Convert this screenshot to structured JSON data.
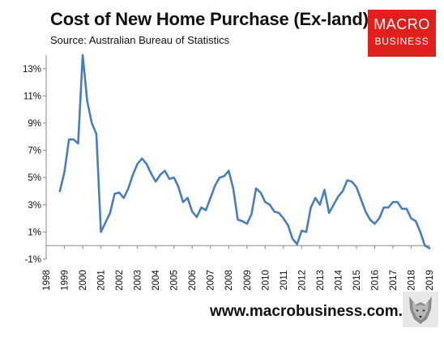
{
  "header": {
    "title": "Cost of New Home Purchase (Ex-land)",
    "subtitle": "Source: Australian Bureau of Statistics"
  },
  "logo": {
    "line1": "MACRO",
    "line2": "BUSINESS"
  },
  "footer": {
    "url": "www.macrobusiness.com.au"
  },
  "colors": {
    "line": "#4a7ebb",
    "logo_bg": "#e0201c",
    "axis": "#888888"
  },
  "chart_data": {
    "type": "line",
    "title": "Cost of New Home Purchase (Ex-land)",
    "subtitle": "Source: Australian Bureau of Statistics",
    "xlabel": "",
    "ylabel": "",
    "xlim": [
      1998,
      2019
    ],
    "ylim": [
      -1,
      14
    ],
    "y_ticks": [
      -1,
      1,
      3,
      5,
      7,
      9,
      11,
      13
    ],
    "y_tick_labels": [
      "-1%",
      "1%",
      "3%",
      "5%",
      "7%",
      "9%",
      "11%",
      "13%"
    ],
    "x_ticks": [
      1998,
      1999,
      2000,
      2001,
      2002,
      2003,
      2004,
      2005,
      2006,
      2007,
      2008,
      2009,
      2010,
      2011,
      2012,
      2013,
      2014,
      2015,
      2016,
      2017,
      2018,
      2019
    ],
    "x_tick_labels": [
      "1998",
      "1999",
      "2000",
      "2001",
      "2002",
      "2003",
      "2004",
      "2005",
      "2006",
      "2007",
      "2008",
      "2009",
      "2010",
      "2011",
      "2012",
      "2013",
      "2014",
      "2015",
      "2016",
      "2017",
      "2018",
      "2019"
    ],
    "grid": false,
    "series": [
      {
        "values": [
          [
            1998.75,
            4.0
          ],
          [
            1999.0,
            5.4
          ],
          [
            1999.25,
            7.8
          ],
          [
            1999.5,
            7.8
          ],
          [
            1999.75,
            7.5
          ],
          [
            2000.0,
            14.0
          ],
          [
            2000.25,
            10.6
          ],
          [
            2000.5,
            9.0
          ],
          [
            2000.75,
            8.2
          ],
          [
            2001.0,
            1.0
          ],
          [
            2001.25,
            1.7
          ],
          [
            2001.5,
            2.4
          ],
          [
            2001.75,
            3.8
          ],
          [
            2002.0,
            3.9
          ],
          [
            2002.25,
            3.5
          ],
          [
            2002.5,
            4.2
          ],
          [
            2002.75,
            5.2
          ],
          [
            2003.0,
            6.0
          ],
          [
            2003.25,
            6.4
          ],
          [
            2003.5,
            6.0
          ],
          [
            2003.75,
            5.3
          ],
          [
            2004.0,
            4.7
          ],
          [
            2004.25,
            5.2
          ],
          [
            2004.5,
            5.5
          ],
          [
            2004.75,
            4.9
          ],
          [
            2005.0,
            5.0
          ],
          [
            2005.25,
            4.3
          ],
          [
            2005.5,
            3.2
          ],
          [
            2005.75,
            3.5
          ],
          [
            2006.0,
            2.5
          ],
          [
            2006.25,
            2.1
          ],
          [
            2006.5,
            2.8
          ],
          [
            2006.75,
            2.6
          ],
          [
            2007.0,
            3.5
          ],
          [
            2007.25,
            4.4
          ],
          [
            2007.5,
            5.0
          ],
          [
            2007.75,
            5.1
          ],
          [
            2008.0,
            5.5
          ],
          [
            2008.25,
            4.2
          ],
          [
            2008.5,
            1.9
          ],
          [
            2008.75,
            1.8
          ],
          [
            2009.0,
            1.6
          ],
          [
            2009.25,
            2.3
          ],
          [
            2009.5,
            4.2
          ],
          [
            2009.75,
            3.9
          ],
          [
            2010.0,
            3.2
          ],
          [
            2010.25,
            3.0
          ],
          [
            2010.5,
            2.5
          ],
          [
            2010.75,
            2.4
          ],
          [
            2011.0,
            2.0
          ],
          [
            2011.25,
            1.5
          ],
          [
            2011.5,
            0.5
          ],
          [
            2011.75,
            0.1
          ],
          [
            2012.0,
            1.1
          ],
          [
            2012.25,
            1.0
          ],
          [
            2012.5,
            2.8
          ],
          [
            2012.75,
            3.5
          ],
          [
            2013.0,
            3.0
          ],
          [
            2013.25,
            4.1
          ],
          [
            2013.5,
            2.4
          ],
          [
            2013.75,
            3.0
          ],
          [
            2014.0,
            3.6
          ],
          [
            2014.25,
            4.0
          ],
          [
            2014.5,
            4.8
          ],
          [
            2014.75,
            4.7
          ],
          [
            2015.0,
            4.3
          ],
          [
            2015.25,
            3.4
          ],
          [
            2015.5,
            2.5
          ],
          [
            2015.75,
            1.9
          ],
          [
            2016.0,
            1.6
          ],
          [
            2016.25,
            2.0
          ],
          [
            2016.5,
            2.8
          ],
          [
            2016.75,
            2.8
          ],
          [
            2017.0,
            3.2
          ],
          [
            2017.25,
            3.2
          ],
          [
            2017.5,
            2.7
          ],
          [
            2017.75,
            2.7
          ],
          [
            2018.0,
            2.0
          ],
          [
            2018.25,
            1.8
          ],
          [
            2018.5,
            1.0
          ],
          [
            2018.75,
            0.0
          ],
          [
            2019.0,
            -0.2
          ]
        ]
      }
    ]
  }
}
